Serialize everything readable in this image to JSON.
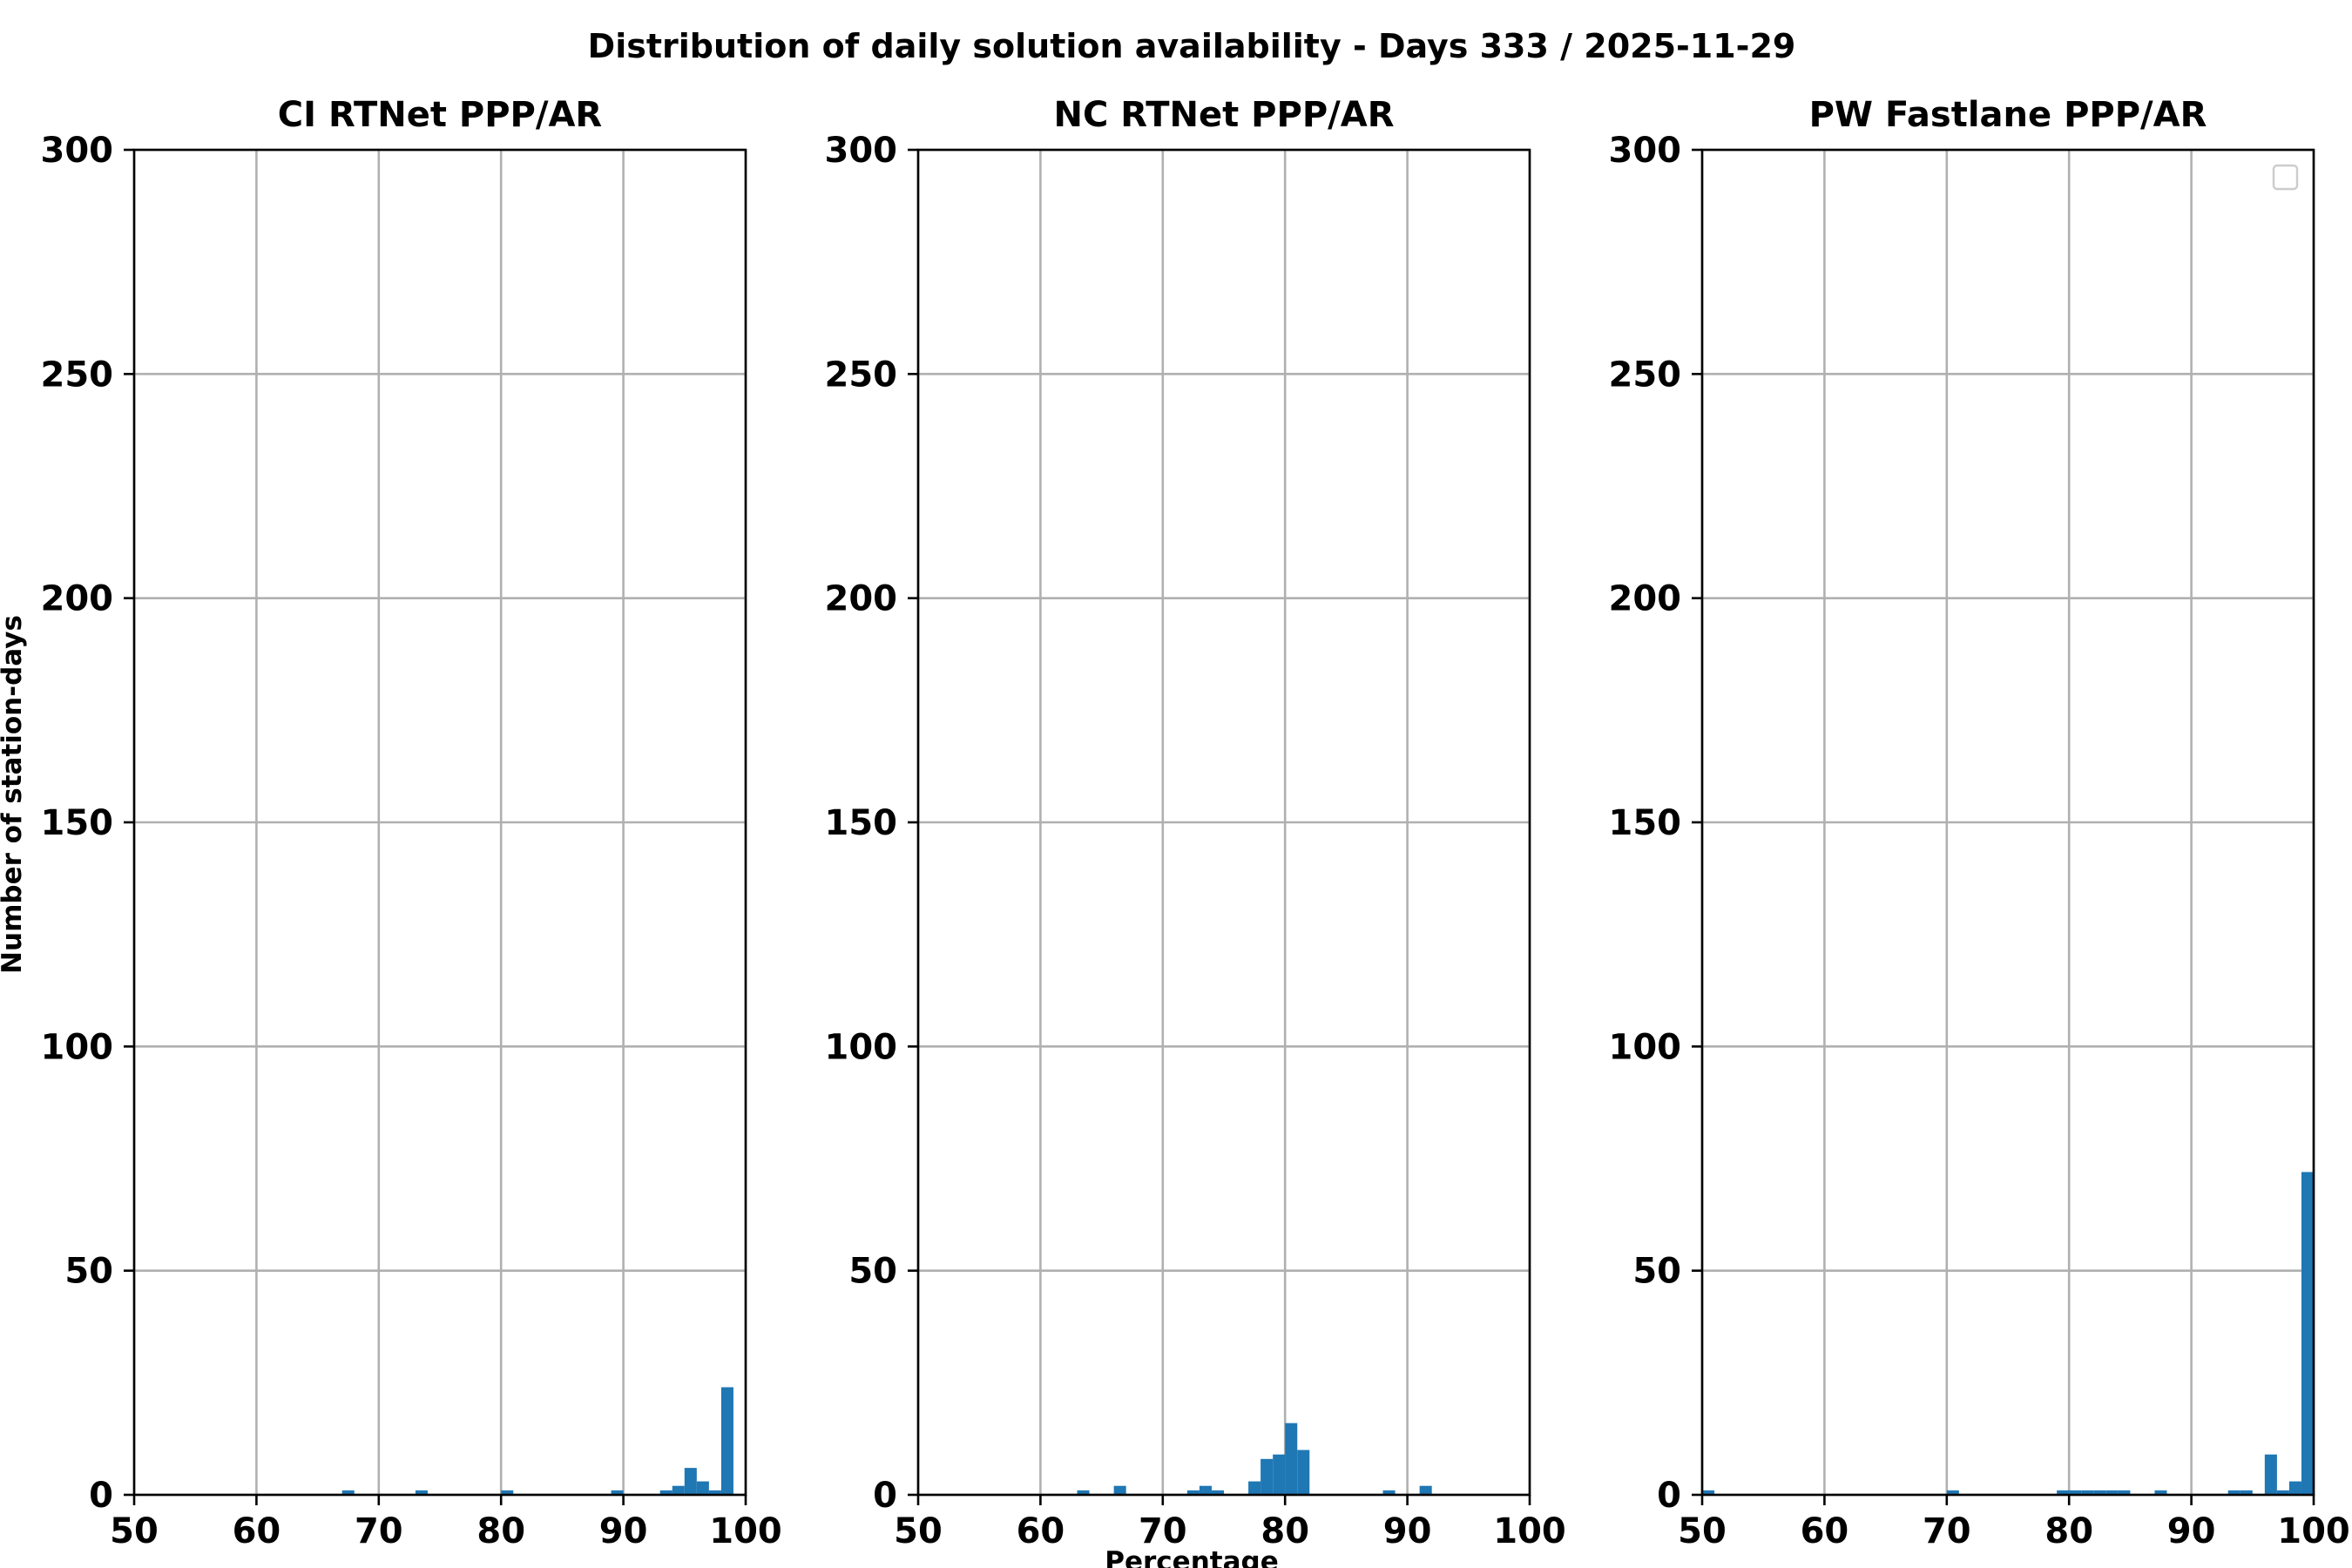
{
  "figure": {
    "title": "Distribution of daily solution availability - Days 333  / 2025-11-29",
    "xlabel": "Percentage",
    "ylabel": "Number of station-days"
  },
  "chart_data": [
    {
      "type": "bar",
      "title": "CI RTNet PPP/AR",
      "xlim": [
        50,
        100
      ],
      "ylim": [
        0,
        300
      ],
      "xticks": [
        "50",
        "60",
        "70",
        "80",
        "90",
        "100"
      ],
      "yticks": [
        "0",
        "50",
        "100",
        "150",
        "200",
        "250",
        "300"
      ],
      "grid": true,
      "bin_width": 1,
      "bins": [
        {
          "x": 67,
          "count": 1
        },
        {
          "x": 73,
          "count": 1
        },
        {
          "x": 80,
          "count": 1
        },
        {
          "x": 89,
          "count": 1
        },
        {
          "x": 93,
          "count": 1
        },
        {
          "x": 94,
          "count": 2
        },
        {
          "x": 95,
          "count": 6
        },
        {
          "x": 96,
          "count": 3
        },
        {
          "x": 97,
          "count": 1
        },
        {
          "x": 98,
          "count": 24
        }
      ]
    },
    {
      "type": "bar",
      "title": "NC RTNet PPP/AR",
      "xlim": [
        50,
        100
      ],
      "ylim": [
        0,
        300
      ],
      "xticks": [
        "50",
        "60",
        "70",
        "80",
        "90",
        "100"
      ],
      "yticks": [
        "0",
        "50",
        "100",
        "150",
        "200",
        "250",
        "300"
      ],
      "grid": true,
      "bin_width": 1,
      "bins": [
        {
          "x": 63,
          "count": 1
        },
        {
          "x": 66,
          "count": 2
        },
        {
          "x": 72,
          "count": 1
        },
        {
          "x": 73,
          "count": 2
        },
        {
          "x": 74,
          "count": 1
        },
        {
          "x": 77,
          "count": 3
        },
        {
          "x": 78,
          "count": 8
        },
        {
          "x": 79,
          "count": 9
        },
        {
          "x": 80,
          "count": 16
        },
        {
          "x": 81,
          "count": 10
        },
        {
          "x": 88,
          "count": 1
        },
        {
          "x": 91,
          "count": 2
        }
      ]
    },
    {
      "type": "bar",
      "title": "PW Fastlane PPP/AR",
      "xlim": [
        50,
        100
      ],
      "ylim": [
        0,
        300
      ],
      "xticks": [
        "50",
        "60",
        "70",
        "80",
        "90",
        "100"
      ],
      "yticks": [
        "0",
        "50",
        "100",
        "150",
        "200",
        "250",
        "300"
      ],
      "grid": true,
      "legend": "top-right (empty)",
      "bin_width": 1,
      "bins": [
        {
          "x": 50,
          "count": 1
        },
        {
          "x": 70,
          "count": 1
        },
        {
          "x": 79,
          "count": 1
        },
        {
          "x": 80,
          "count": 1
        },
        {
          "x": 81,
          "count": 1
        },
        {
          "x": 82,
          "count": 1
        },
        {
          "x": 83,
          "count": 1
        },
        {
          "x": 84,
          "count": 1
        },
        {
          "x": 87,
          "count": 1
        },
        {
          "x": 93,
          "count": 1
        },
        {
          "x": 94,
          "count": 1
        },
        {
          "x": 96,
          "count": 9
        },
        {
          "x": 97,
          "count": 1
        },
        {
          "x": 98,
          "count": 3
        },
        {
          "x": 99,
          "count": 72
        }
      ]
    }
  ],
  "colors": {
    "bar": "#1f77b4",
    "grid": "#b0b0b0"
  }
}
